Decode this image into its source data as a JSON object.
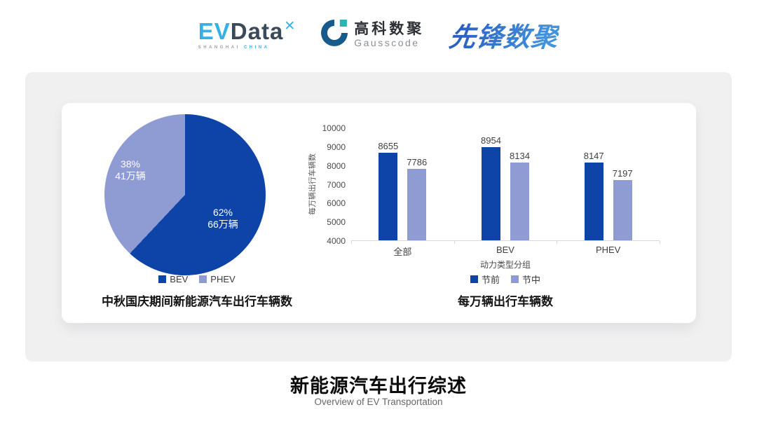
{
  "header": {
    "evdata": {
      "part1": "EV",
      "part2": "Data",
      "mark": "✕",
      "caption_left": "SHANGHAI",
      "caption_right": "CHINA"
    },
    "gausscode": {
      "name_cn": "高科数聚",
      "name_en": "Gausscode"
    },
    "xianfeng": {
      "name": "先锋数聚"
    }
  },
  "colors": {
    "series_dark_blue": "#0e44a8",
    "series_light_blue": "#8f9bd3",
    "evdata_light_blue": "#35b2e5",
    "evdata_dark": "#3a4a59",
    "gausscode_blue": "#175a8c",
    "gausscode_teal": "#2ab5b0",
    "panel_gray": "#f0f0f1"
  },
  "chart_data": [
    {
      "type": "pie",
      "title": "中秋国庆期间新能源汽车出行车辆数",
      "start_angle_deg": 0,
      "slices": [
        {
          "label": "BEV",
          "percent": 62,
          "amount": "66万辆",
          "color": "#0e44a8"
        },
        {
          "label": "PHEV",
          "percent": 38,
          "amount": "41万辆",
          "color": "#8f9bd3"
        }
      ],
      "legend_position": "bottom"
    },
    {
      "type": "bar",
      "title": "每万辆出行车辆数",
      "categories": [
        "全部",
        "BEV",
        "PHEV"
      ],
      "series": [
        {
          "name": "节前",
          "values": [
            8655,
            8954,
            8147
          ],
          "color": "#0e44a8"
        },
        {
          "name": "节中",
          "values": [
            7786,
            8134,
            7197
          ],
          "color": "#8f9bd3"
        }
      ],
      "xlabel": "动力类型分组",
      "ylabel": "每万辆出行车辆数",
      "ylim": [
        4000,
        10000
      ],
      "ytick_step": 1000,
      "grid": false,
      "legend_position": "bottom"
    }
  ],
  "footer": {
    "title": "新能源汽车出行综述",
    "subtitle": "Overview of EV Transportation"
  }
}
